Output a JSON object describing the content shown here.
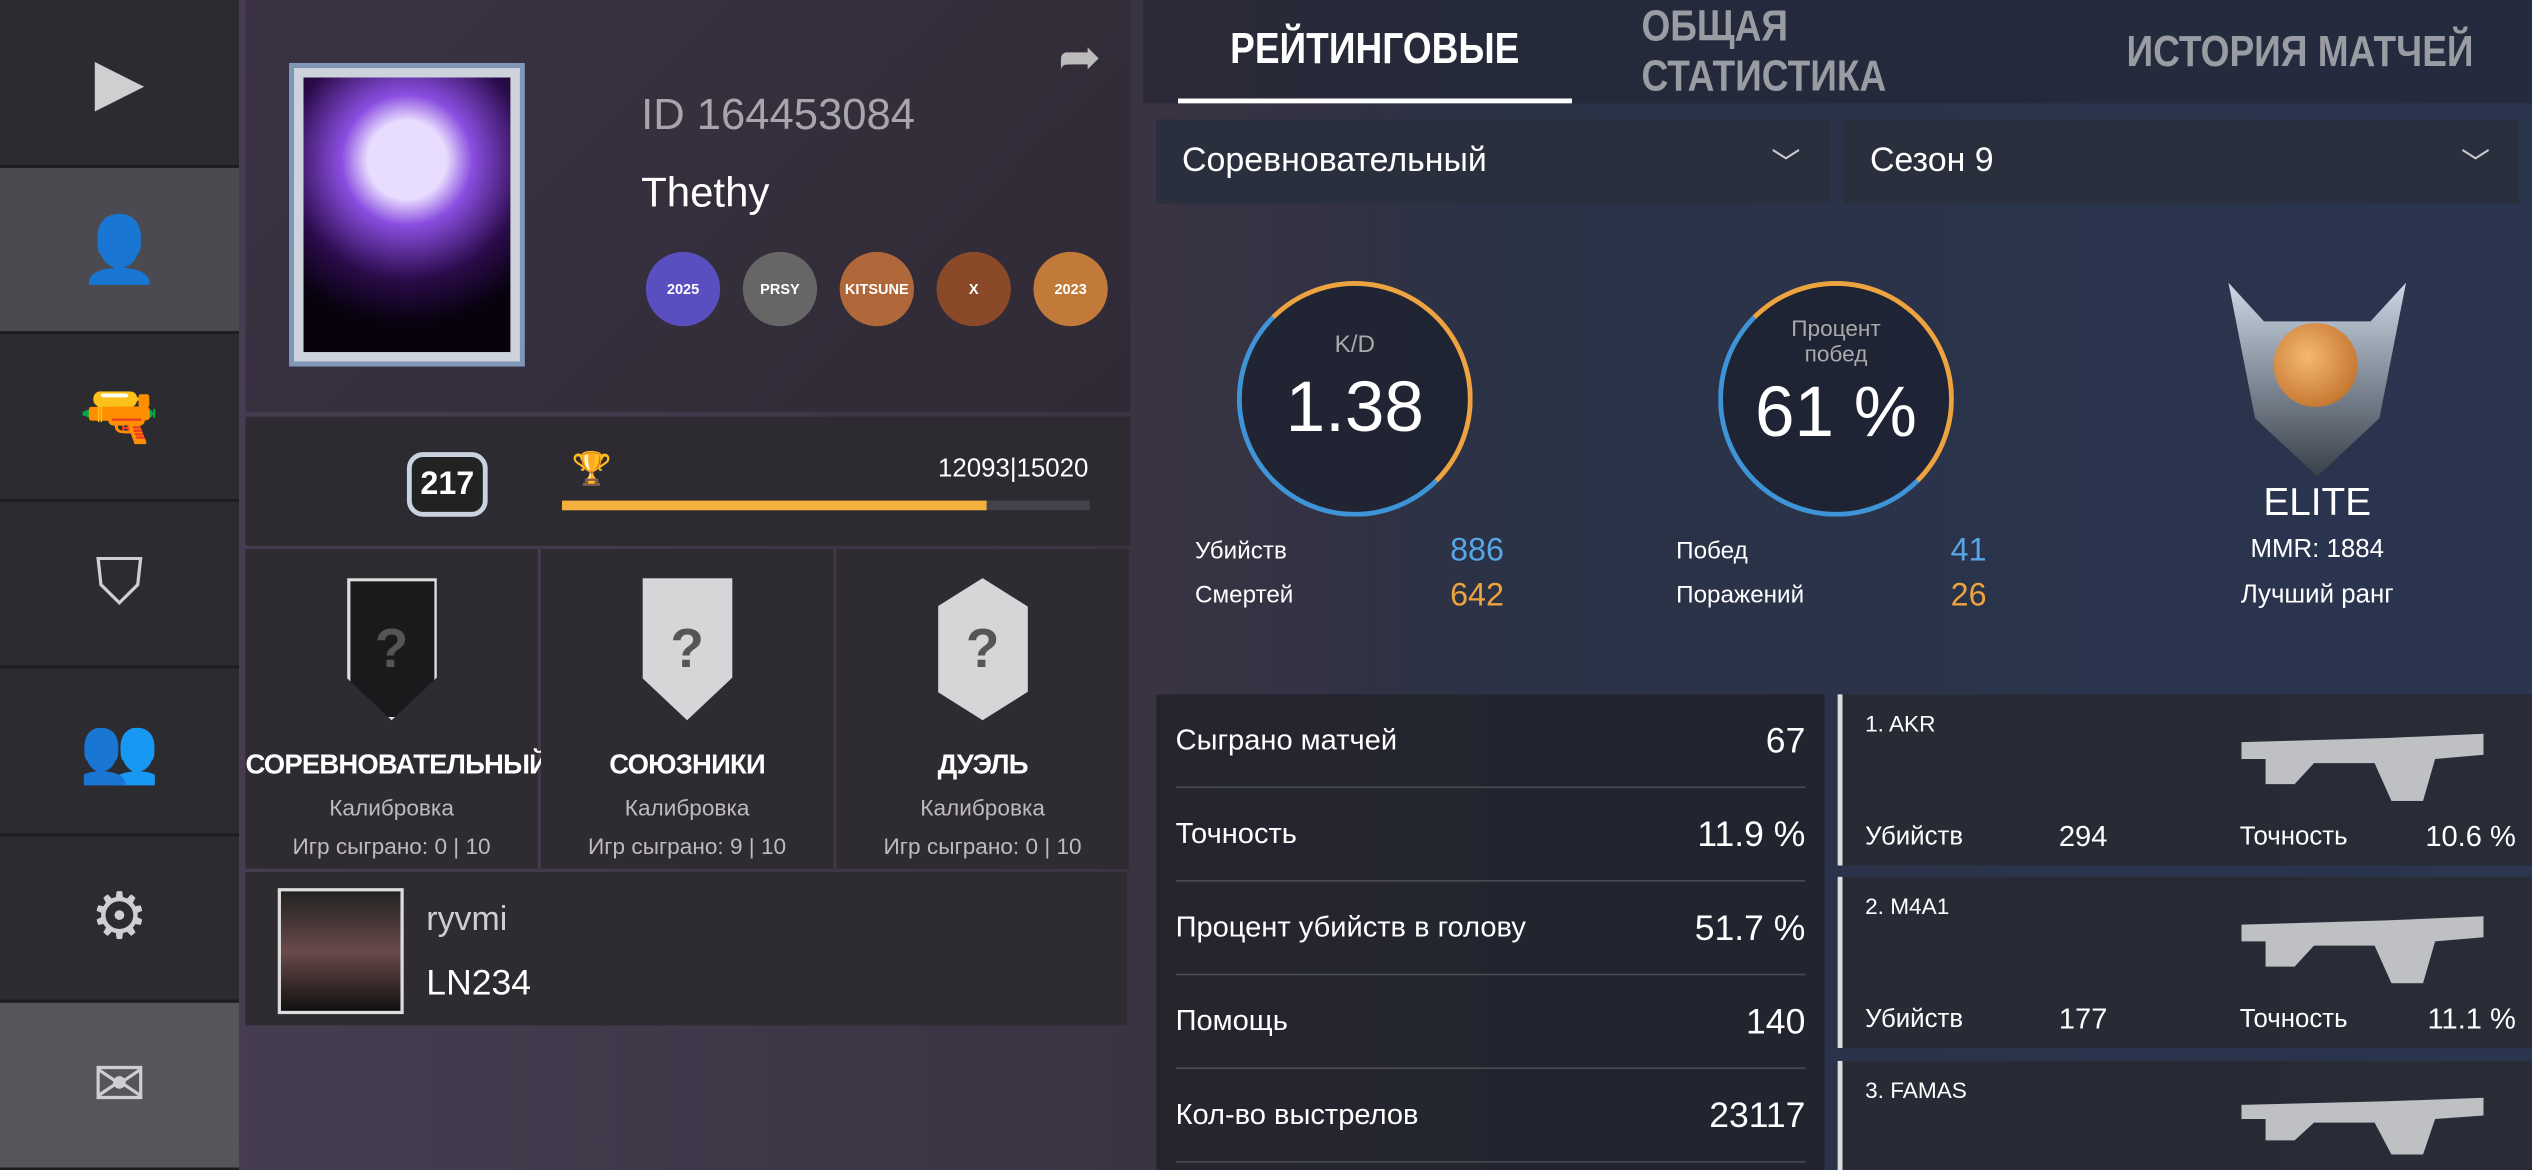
{
  "nav": {
    "items": [
      {
        "icon": "play-icon",
        "glyph": "▶"
      },
      {
        "icon": "profile-icon",
        "glyph": "👤"
      },
      {
        "icon": "pistol-icon",
        "glyph": "🔫"
      },
      {
        "icon": "shield-icon",
        "glyph": "⛉"
      },
      {
        "icon": "friends-icon",
        "glyph": "👥"
      },
      {
        "icon": "gear-icon",
        "glyph": "⚙"
      },
      {
        "icon": "mail-icon",
        "glyph": "✉"
      }
    ]
  },
  "profile": {
    "id": "ID 164453084",
    "name": "Thethy",
    "badges": [
      "2025",
      "PRSY",
      "KITSUNE",
      "X",
      "2023"
    ],
    "level": "217",
    "xp": "12093|15020",
    "xp_progress": 0.805
  },
  "ranks": [
    {
      "title": "СОРЕВНОВАТЕЛЬНЫЙ",
      "status": "Калибровка",
      "games": "Игр сыграно: 0 | 10"
    },
    {
      "title": "СОЮЗНИКИ",
      "status": "Калибровка",
      "games": "Игр сыграно: 9 | 10"
    },
    {
      "title": "ДУЭЛЬ",
      "status": "Калибровка",
      "games": "Игр сыграно: 0 | 10"
    }
  ],
  "clan": {
    "name": "ryvmi",
    "tag": "LN234"
  },
  "tabs": [
    "РЕЙТИНГОВЫЕ",
    "ОБЩАЯ СТАТИСТИКА",
    "ИСТОРИЯ МАТЧЕЙ"
  ],
  "filters": {
    "mode": "Соревновательный",
    "season": "Сезон 9"
  },
  "kd": {
    "label": "K/D",
    "value": "1.38",
    "kills_label": "Убийств",
    "kills": "886",
    "deaths_label": "Смертей",
    "deaths": "642"
  },
  "winrate": {
    "label": "Процент побед",
    "value": "61 %",
    "wins_label": "Побед",
    "wins": "41",
    "losses_label": "Поражений",
    "losses": "26"
  },
  "rank": {
    "name": "ELITE",
    "mmr": "MMR: 1884",
    "best": "Лучший ранг"
  },
  "stats": [
    {
      "label": "Сыграно матчей",
      "value": "67"
    },
    {
      "label": "Точность",
      "value": "11.9 %"
    },
    {
      "label": "Процент убийств в голову",
      "value": "51.7 %"
    },
    {
      "label": "Помощь",
      "value": "140"
    },
    {
      "label": "Кол-во выстрелов",
      "value": "23117"
    }
  ],
  "weapons": [
    {
      "name": "1. AKR",
      "kills_label": "Убийств",
      "kills": "294",
      "acc_label": "Точность",
      "acc": "10.6 %"
    },
    {
      "name": "2. M4A1",
      "kills_label": "Убийств",
      "kills": "177",
      "acc_label": "Точность",
      "acc": "11.1 %"
    },
    {
      "name": "3. FAMAS"
    }
  ],
  "colors": {
    "accent_orange": "#eda33f",
    "accent_blue": "#58a6e6",
    "xp_bar": "#f3b03d"
  }
}
